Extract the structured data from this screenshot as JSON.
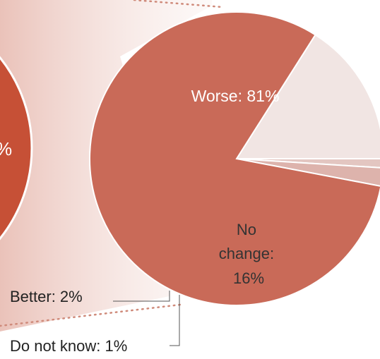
{
  "chart_data": {
    "type": "pie",
    "slices": [
      {
        "label": "Worse",
        "value": 81,
        "display": "Worse: 81%",
        "color": "#c96a58"
      },
      {
        "label": "No change",
        "value": 16,
        "display_lines": [
          "No",
          "change:",
          "16%"
        ],
        "color": "#f1e5e3"
      },
      {
        "label": "Do not know",
        "value": 1,
        "display": "Do not know: 1%",
        "color": "#e3c6c1"
      },
      {
        "label": "Better",
        "value": 2,
        "display": "Better: 2%",
        "color": "#ddb3ac"
      }
    ],
    "background_pie_color": "#c65036",
    "background_pie_text": "%"
  }
}
